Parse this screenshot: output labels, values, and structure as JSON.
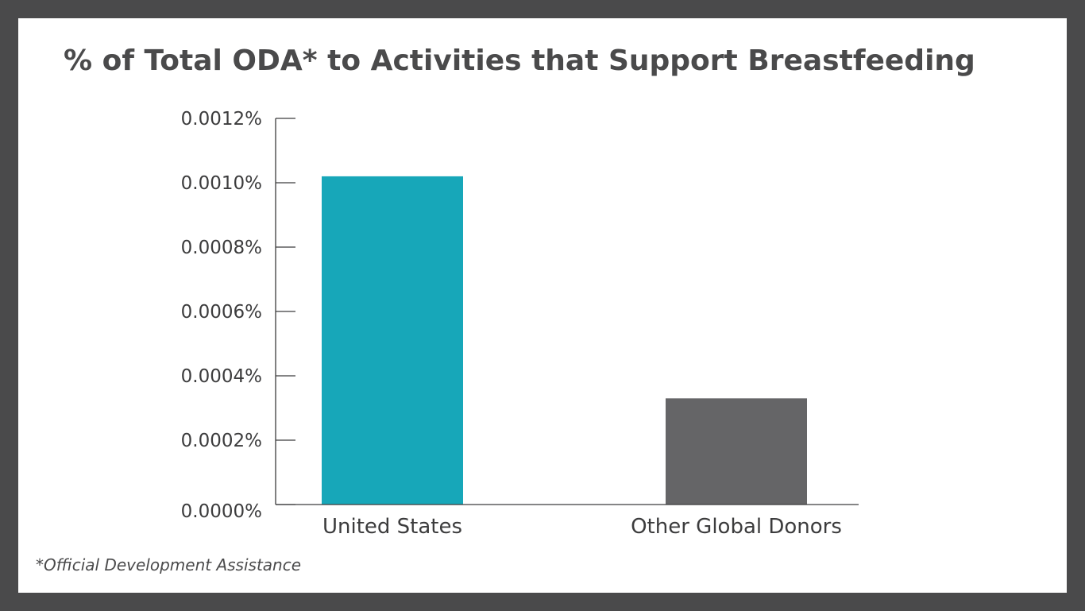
{
  "chart_data": {
    "type": "bar",
    "title": "% of Total ODA* to Activities that Support Breastfeeding",
    "categories": [
      "United States",
      "Other Global Donors"
    ],
    "values": [
      0.00102,
      0.00033
    ],
    "colors": [
      "#17a7b9",
      "#656567"
    ],
    "ylim": [
      0,
      0.0012
    ],
    "yticks": [
      0,
      0.0002,
      0.0004,
      0.0006,
      0.0008,
      0.001,
      0.0012
    ],
    "ytick_labels": [
      "0.0000%",
      "0.0002%",
      "0.0004%",
      "0.0006%",
      "0.0008%",
      "0.0010%",
      "0.0012%"
    ],
    "xlabel": "",
    "ylabel": "",
    "grid": false,
    "legend": "none"
  },
  "footnote": "*Official Development Assistance"
}
